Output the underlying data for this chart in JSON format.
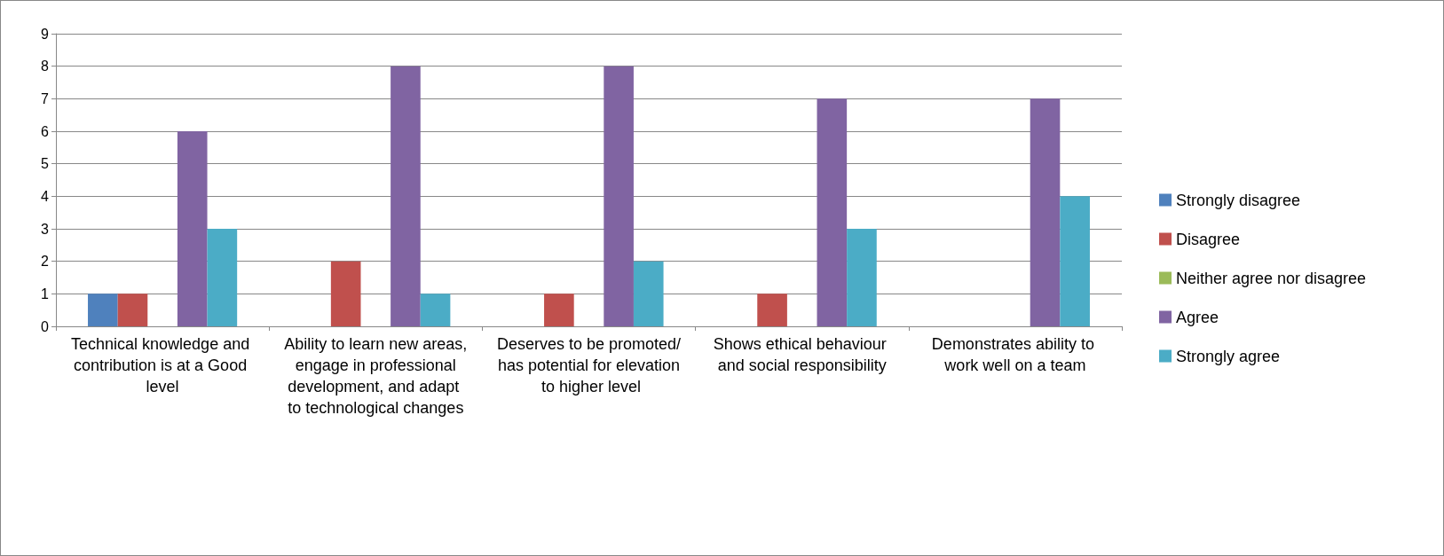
{
  "chart_data": {
    "type": "bar",
    "categories": [
      "Technical knowledge and contribution is at a Good level",
      "Ability to learn new areas, engage in professional development, and adapt to technological changes",
      "Deserves to be promoted/has potential for elevation to higher level",
      "Shows ethical behaviour and social responsibility",
      "Demonstrates ability to work well on a team"
    ],
    "series": [
      {
        "name": "Strongly disagree",
        "color": "#4f81bd",
        "values": [
          1,
          0,
          0,
          0,
          0
        ]
      },
      {
        "name": "Disagree",
        "color": "#c0504d",
        "values": [
          1,
          2,
          1,
          1,
          0
        ]
      },
      {
        "name": "Neither agree nor disagree",
        "color": "#9bbb59",
        "values": [
          0,
          0,
          0,
          0,
          0
        ]
      },
      {
        "name": "Agree",
        "color": "#8064a2",
        "values": [
          6,
          8,
          8,
          7,
          7
        ]
      },
      {
        "name": "Strongly agree",
        "color": "#4bacc6",
        "values": [
          3,
          1,
          2,
          3,
          4
        ]
      }
    ],
    "ylim": [
      0,
      9
    ],
    "yticks": [
      0,
      1,
      2,
      3,
      4,
      5,
      6,
      7,
      8,
      9
    ],
    "grid": "y",
    "legend": "right"
  }
}
